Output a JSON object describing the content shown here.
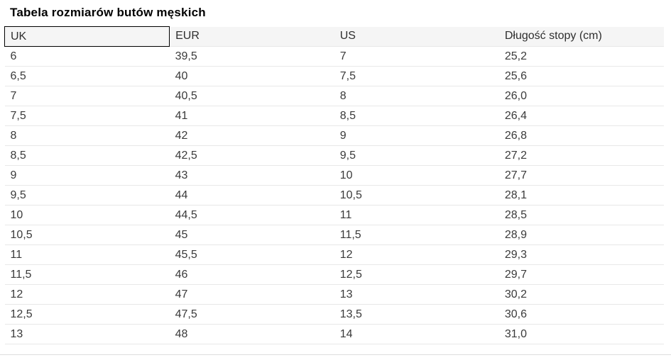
{
  "page": {
    "title": "Tabela rozmiarów butów męskich"
  },
  "table": {
    "columns": [
      "UK",
      "EUR",
      "US",
      "Długość stopy (cm)"
    ],
    "focused_column": "UK",
    "rows": [
      [
        "6",
        "39,5",
        "7",
        "25,2"
      ],
      [
        "6,5",
        "40",
        "7,5",
        "25,6"
      ],
      [
        "7",
        "40,5",
        "8",
        "26,0"
      ],
      [
        "7,5",
        "41",
        "8,5",
        "26,4"
      ],
      [
        "8",
        "42",
        "9",
        "26,8"
      ],
      [
        "8,5",
        "42,5",
        "9,5",
        "27,2"
      ],
      [
        "9",
        "43",
        "10",
        "27,7"
      ],
      [
        "9,5",
        "44",
        "10,5",
        "28,1"
      ],
      [
        "10",
        "44,5",
        "11",
        "28,5"
      ],
      [
        "10,5",
        "45",
        "11,5",
        "28,9"
      ],
      [
        "11",
        "45,5",
        "12",
        "29,3"
      ],
      [
        "11,5",
        "46",
        "12,5",
        "29,7"
      ],
      [
        "12",
        "47",
        "13",
        "30,2"
      ],
      [
        "12,5",
        "47,5",
        "13,5",
        "30,6"
      ],
      [
        "13",
        "48",
        "14",
        "31,0"
      ]
    ]
  },
  "colors": {
    "header_background": "#f5f5f5",
    "row_divider": "#e8e8e8",
    "focus_border": "#000000",
    "title_color": "#000000",
    "text_color": "#3a3a3a"
  }
}
